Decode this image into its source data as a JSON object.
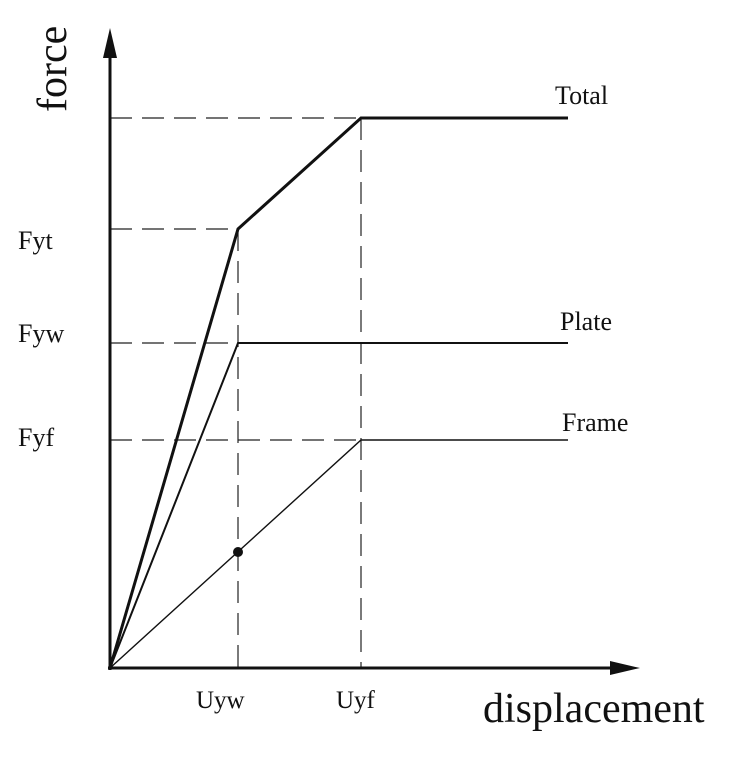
{
  "axes": {
    "y_label": "force",
    "x_label": "displacement"
  },
  "y_ticks": [
    "Fyt",
    "Fyw",
    "Fyf"
  ],
  "x_ticks": [
    "Uyw",
    "Uyf"
  ],
  "curves": [
    {
      "label": "Total"
    },
    {
      "label": "Plate"
    },
    {
      "label": "Frame"
    }
  ]
}
